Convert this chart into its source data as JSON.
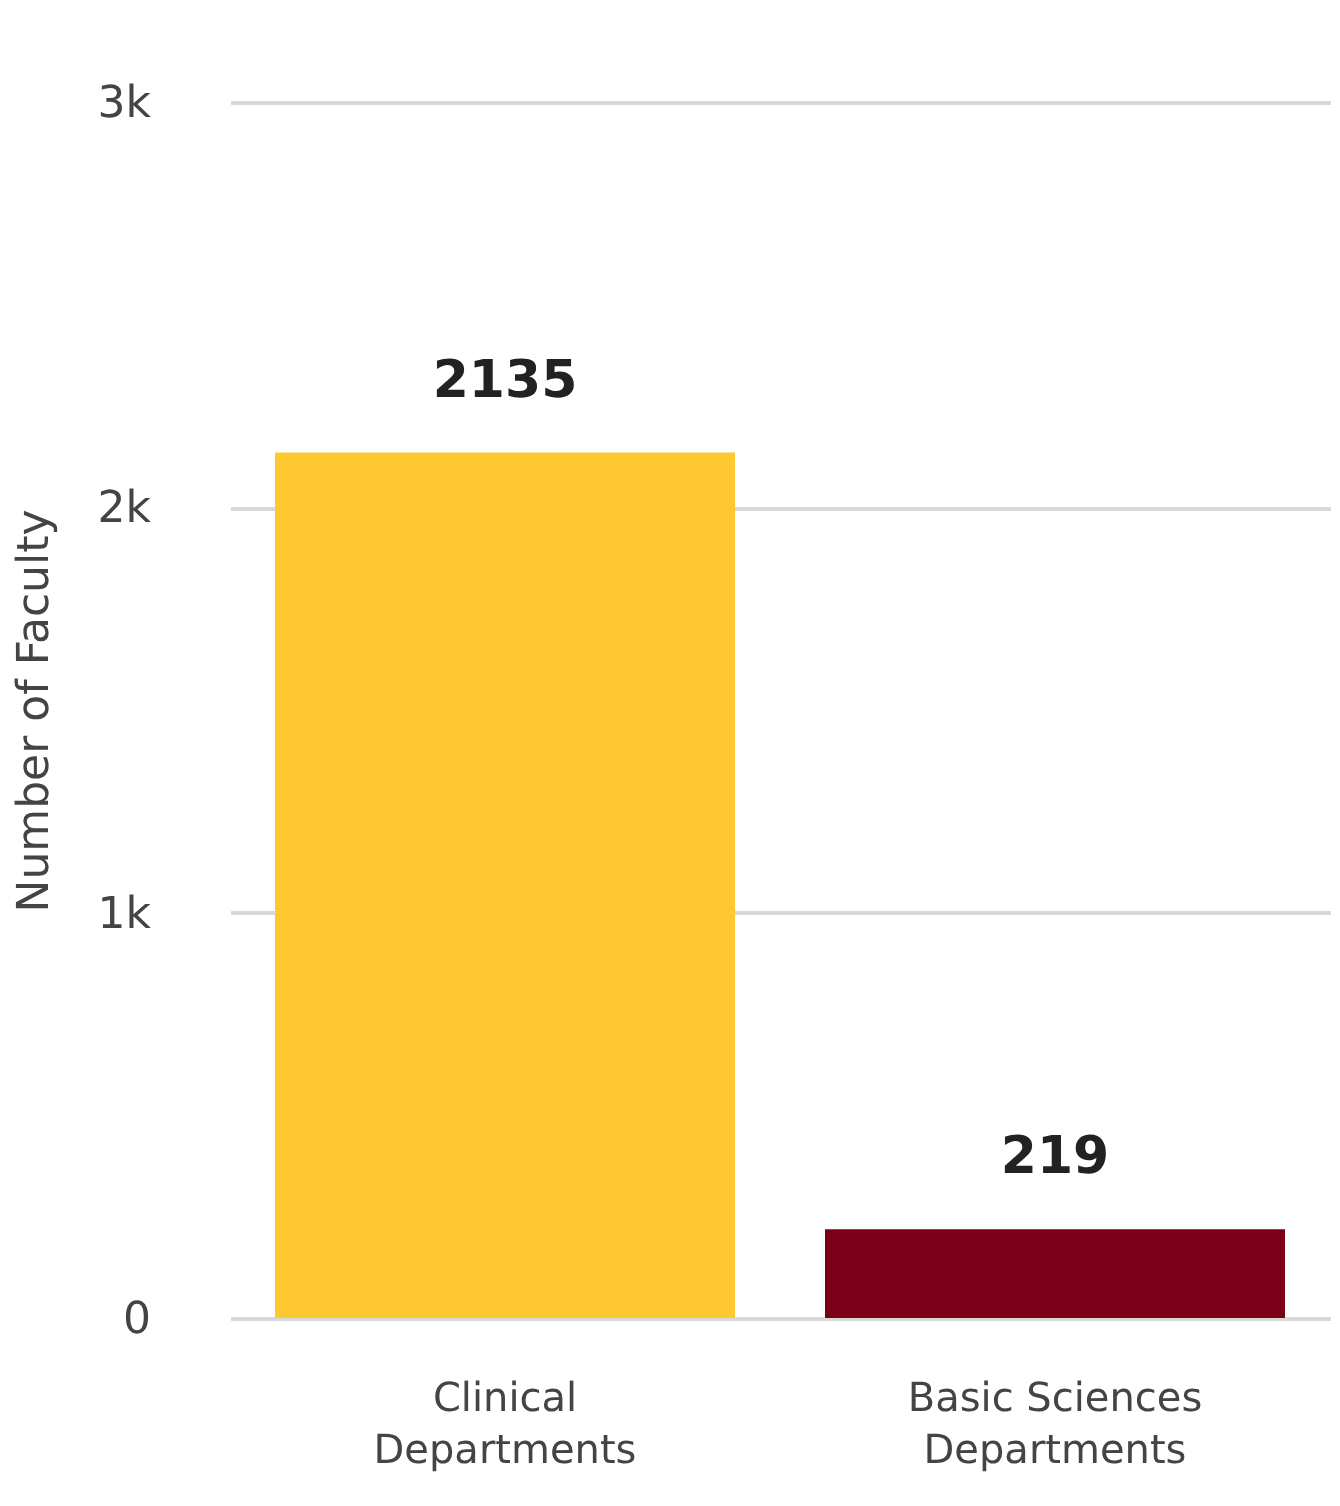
{
  "chart_data": {
    "type": "bar",
    "ylabel": "Number of Faculty",
    "categories": [
      "Clinical Departments",
      "Basic Sciences Departments"
    ],
    "values": [
      2135,
      219
    ],
    "colors": [
      "#fdc832",
      "#7a0019"
    ],
    "ylim": [
      0,
      3000
    ],
    "yticks": [
      {
        "value": 0,
        "label": "0"
      },
      {
        "value": 1000,
        "label": "1k"
      },
      {
        "value": 2000,
        "label": "2k"
      },
      {
        "value": 3000,
        "label": "3k"
      }
    ],
    "grid": "y",
    "data_labels": true
  }
}
